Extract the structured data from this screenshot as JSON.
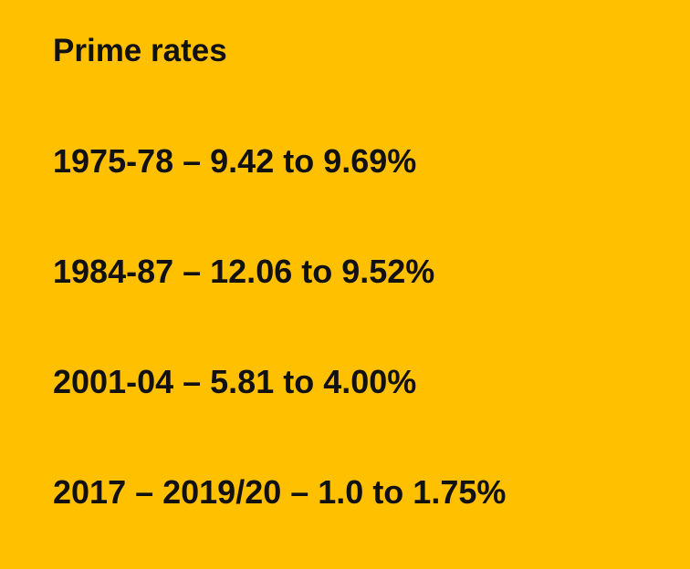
{
  "title": "Prime rates",
  "items": [
    "1975-78 – 9.42 to 9.69%",
    "1984-87 – 12.06 to 9.52%",
    "2001-04 – 5.81 to 4.00%",
    "2017 – 2019/20 – 1.0 to 1.75%"
  ]
}
